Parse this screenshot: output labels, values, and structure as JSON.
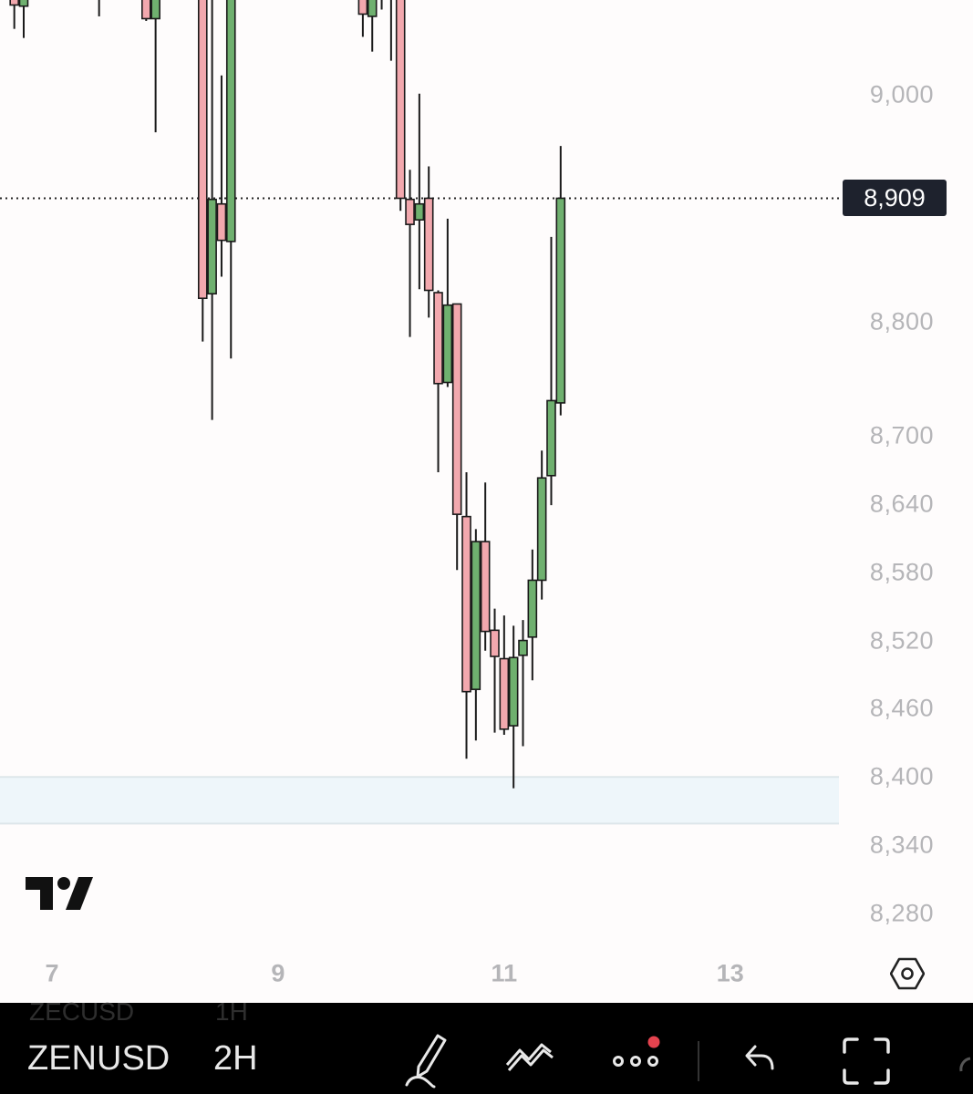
{
  "chart_data": {
    "type": "candlestick",
    "symbol": "ZENUSD",
    "interval": "2H",
    "ylim": [
      8240,
      9100
    ],
    "price_ticks": [
      "9,000",
      "8,800",
      "8,700",
      "8,640",
      "8,580",
      "8,520",
      "8,460",
      "8,400",
      "8,340",
      "8,280"
    ],
    "price_tick_values": [
      9000,
      8800,
      8700,
      8640,
      8580,
      8520,
      8460,
      8400,
      8340,
      8280
    ],
    "time_ticks": [
      "7",
      "9",
      "11",
      "13"
    ],
    "time_tick_days": [
      7,
      9,
      11,
      13
    ],
    "last_price": 8909,
    "last_price_label": "8,909",
    "zone": {
      "top": 8400,
      "bottom": 8359,
      "color": "#eef6fa"
    },
    "colors": {
      "up": "#6fb06f",
      "down": "#f2a8ae",
      "outline": "#1a1a1a"
    },
    "candles": [
      {
        "d": 6,
        "h": 16,
        "o": 9087,
        "hi": 9099,
        "lo": 9058,
        "c": 9079
      },
      {
        "d": 6,
        "h": 18,
        "o": 9078,
        "hi": 9099,
        "lo": 9050,
        "c": 9091
      },
      {
        "d": 7,
        "h": 10,
        "o": 9087,
        "hi": 9099,
        "lo": 9069,
        "c": 9087
      },
      {
        "d": 7,
        "h": 20,
        "o": 9091,
        "hi": 9099,
        "lo": 9065,
        "c": 9067
      },
      {
        "d": 7,
        "h": 22,
        "o": 9067,
        "hi": 9099,
        "lo": 8967,
        "c": 9091
      },
      {
        "d": 8,
        "h": 8,
        "o": 9091,
        "hi": 9099,
        "lo": 8783,
        "c": 8821
      },
      {
        "d": 8,
        "h": 10,
        "o": 8825,
        "hi": 9099,
        "lo": 8714,
        "c": 8908
      },
      {
        "d": 8,
        "h": 12,
        "o": 8904,
        "hi": 9017,
        "lo": 8840,
        "c": 8872
      },
      {
        "d": 8,
        "h": 14,
        "o": 8871,
        "hi": 9099,
        "lo": 8768,
        "c": 9091
      },
      {
        "d": 9,
        "h": 18,
        "o": 9091,
        "hi": 9099,
        "lo": 9051,
        "c": 9071
      },
      {
        "d": 9,
        "h": 20,
        "o": 9069,
        "hi": 9099,
        "lo": 9038,
        "c": 9091
      },
      {
        "d": 9,
        "h": 22,
        "o": 9095,
        "hi": 9099,
        "lo": 9075,
        "c": 9095
      },
      {
        "d": 10,
        "h": 0,
        "o": 9095,
        "hi": 9099,
        "lo": 9030,
        "c": 9095
      },
      {
        "d": 10,
        "h": 2,
        "o": 9091,
        "hi": 9099,
        "lo": 8898,
        "c": 8909
      },
      {
        "d": 10,
        "h": 4,
        "o": 8908,
        "hi": 8934,
        "lo": 8787,
        "c": 8886
      },
      {
        "d": 10,
        "h": 6,
        "o": 8890,
        "hi": 9001,
        "lo": 8829,
        "c": 8904
      },
      {
        "d": 10,
        "h": 8,
        "o": 8909,
        "hi": 8937,
        "lo": 8804,
        "c": 8828
      },
      {
        "d": 10,
        "h": 10,
        "o": 8826,
        "hi": 8828,
        "lo": 8668,
        "c": 8746
      },
      {
        "d": 10,
        "h": 12,
        "o": 8747,
        "hi": 8891,
        "lo": 8743,
        "c": 8815
      },
      {
        "d": 10,
        "h": 14,
        "o": 8816,
        "hi": 8816,
        "lo": 8582,
        "c": 8631
      },
      {
        "d": 10,
        "h": 16,
        "o": 8629,
        "hi": 8668,
        "lo": 8416,
        "c": 8475
      },
      {
        "d": 10,
        "h": 18,
        "o": 8477,
        "hi": 8618,
        "lo": 8432,
        "c": 8607
      },
      {
        "d": 10,
        "h": 20,
        "o": 8607,
        "hi": 8659,
        "lo": 8511,
        "c": 8528
      },
      {
        "d": 10,
        "h": 22,
        "o": 8529,
        "hi": 8548,
        "lo": 8439,
        "c": 8506
      },
      {
        "d": 11,
        "h": 0,
        "o": 8504,
        "hi": 8542,
        "lo": 8437,
        "c": 8442
      },
      {
        "d": 11,
        "h": 2,
        "o": 8445,
        "hi": 8533,
        "lo": 8390,
        "c": 8505
      },
      {
        "d": 11,
        "h": 4,
        "o": 8507,
        "hi": 8538,
        "lo": 8427,
        "c": 8520
      },
      {
        "d": 11,
        "h": 6,
        "o": 8523,
        "hi": 8600,
        "lo": 8485,
        "c": 8573
      },
      {
        "d": 11,
        "h": 8,
        "o": 8573,
        "hi": 8687,
        "lo": 8556,
        "c": 8663
      },
      {
        "d": 11,
        "h": 10,
        "o": 8665,
        "hi": 8875,
        "lo": 8639,
        "c": 8731
      },
      {
        "d": 11,
        "h": 12,
        "o": 8729,
        "hi": 8955,
        "lo": 8718,
        "c": 8909
      }
    ]
  },
  "bottom_bar": {
    "previous_symbol": "ZECUSD",
    "previous_interval": "1H",
    "symbol": "ZENUSD",
    "interval": "2H",
    "icons": [
      "drawing-pencil-icon",
      "indicators-icon",
      "more-icon",
      "undo-icon",
      "fullscreen-icon"
    ],
    "notification_color": "#e5434f"
  }
}
